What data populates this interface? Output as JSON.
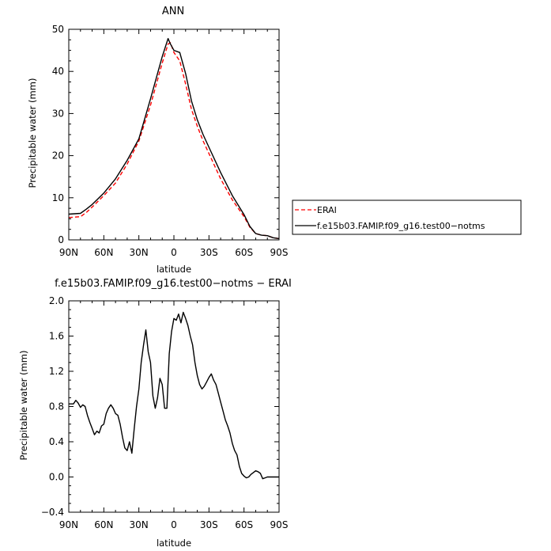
{
  "chart_data": [
    {
      "type": "line",
      "title": "ANN",
      "xlabel": "latitude",
      "ylabel": "Precipitable water (mm)",
      "x_direction": "north-to-south",
      "xlim": [
        90,
        -90
      ],
      "ylim": [
        0,
        50
      ],
      "xticks": [
        {
          "value": 90,
          "label": "90N"
        },
        {
          "value": 60,
          "label": "60N"
        },
        {
          "value": 30,
          "label": "30N"
        },
        {
          "value": 0,
          "label": "0"
        },
        {
          "value": -30,
          "label": "30S"
        },
        {
          "value": -60,
          "label": "60S"
        },
        {
          "value": -90,
          "label": "90S"
        }
      ],
      "yticks": [
        {
          "value": 0,
          "label": "0"
        },
        {
          "value": 10,
          "label": "10"
        },
        {
          "value": 20,
          "label": "20"
        },
        {
          "value": 30,
          "label": "30"
        },
        {
          "value": 40,
          "label": "40"
        },
        {
          "value": 50,
          "label": "50"
        }
      ],
      "grid": false,
      "legend": "outside-right",
      "series": [
        {
          "name": "ERAI",
          "color": "#ff0000",
          "dashed": true,
          "x": [
            90,
            80,
            75,
            70,
            60,
            50,
            40,
            30,
            20,
            15,
            10,
            5,
            3,
            0,
            -5,
            -10,
            -15,
            -20,
            -25,
            -30,
            -40,
            -50,
            -60,
            -65,
            -70,
            -75,
            -80,
            -85,
            -90
          ],
          "y": [
            5.3,
            5.5,
            6.5,
            7.8,
            10.5,
            13.5,
            18,
            23.5,
            32,
            37,
            42,
            46.5,
            46.8,
            44.5,
            42.5,
            37,
            31,
            27,
            23.5,
            20.5,
            14.5,
            9.5,
            5.5,
            3,
            1.5,
            1.1,
            1.0,
            0.5,
            0.3
          ]
        },
        {
          "name": "f.e15b03.FAMIP.f09_g16.test00−notms",
          "color": "#000000",
          "dashed": false,
          "x": [
            90,
            80,
            75,
            70,
            60,
            50,
            40,
            30,
            20,
            15,
            10,
            5,
            3,
            0,
            -5,
            -10,
            -15,
            -20,
            -25,
            -30,
            -40,
            -50,
            -60,
            -65,
            -70,
            -75,
            -80,
            -85,
            -90
          ],
          "y": [
            6.1,
            6.3,
            7.3,
            8.4,
            11.1,
            14.5,
            18.9,
            24,
            33.5,
            38.5,
            43.5,
            47.8,
            46.5,
            45,
            44.5,
            39.5,
            33,
            28.5,
            25,
            22,
            16,
            10.5,
            6,
            3.2,
            1.5,
            1.1,
            1.0,
            0.5,
            0.3
          ]
        }
      ]
    },
    {
      "type": "line",
      "title": "f.e15b03.FAMIP.f09_g16.test00−notms − ERAI",
      "xlabel": "latitude",
      "ylabel": "Precipitable water (mm)",
      "x_direction": "north-to-south",
      "xlim": [
        90,
        -90
      ],
      "ylim": [
        -0.4,
        2.0
      ],
      "xticks": [
        {
          "value": 90,
          "label": "90N"
        },
        {
          "value": 60,
          "label": "60N"
        },
        {
          "value": 30,
          "label": "30N"
        },
        {
          "value": 0,
          "label": "0"
        },
        {
          "value": -30,
          "label": "30S"
        },
        {
          "value": -60,
          "label": "60S"
        },
        {
          "value": -90,
          "label": "90S"
        }
      ],
      "yticks": [
        {
          "value": -0.4,
          "label": "−0.4"
        },
        {
          "value": 0.0,
          "label": "0.0"
        },
        {
          "value": 0.4,
          "label": "0.4"
        },
        {
          "value": 0.8,
          "label": "0.8"
        },
        {
          "value": 1.2,
          "label": "1.2"
        },
        {
          "value": 1.6,
          "label": "1.6"
        },
        {
          "value": 2.0,
          "label": "2.0"
        }
      ],
      "grid": false,
      "series": [
        {
          "color": "#000000",
          "dashed": false,
          "x": [
            90,
            86,
            84,
            82,
            80,
            78,
            76,
            74,
            72,
            70,
            68,
            66,
            64,
            62,
            60,
            58,
            56,
            54,
            52,
            50,
            48,
            46,
            44,
            42,
            40,
            38,
            36,
            34,
            32,
            30,
            28,
            26,
            24,
            22,
            20,
            18,
            16,
            14,
            12,
            10,
            8,
            6,
            4,
            2,
            0,
            -2,
            -4,
            -6,
            -8,
            -10,
            -12,
            -14,
            -16,
            -18,
            -20,
            -22,
            -24,
            -26,
            -28,
            -30,
            -32,
            -34,
            -36,
            -38,
            -40,
            -42,
            -44,
            -46,
            -48,
            -50,
            -52,
            -54,
            -56,
            -58,
            -60,
            -62,
            -64,
            -66,
            -68,
            -70,
            -72,
            -74,
            -76,
            -78,
            -80,
            -82,
            -84,
            -86,
            -88,
            -90
          ],
          "y": [
            0.83,
            0.83,
            0.87,
            0.84,
            0.79,
            0.82,
            0.8,
            0.7,
            0.62,
            0.55,
            0.48,
            0.52,
            0.5,
            0.58,
            0.6,
            0.72,
            0.78,
            0.82,
            0.78,
            0.72,
            0.7,
            0.6,
            0.45,
            0.33,
            0.3,
            0.4,
            0.27,
            0.55,
            0.8,
            1.0,
            1.3,
            1.5,
            1.67,
            1.42,
            1.3,
            0.92,
            0.78,
            0.9,
            1.12,
            1.05,
            0.78,
            0.78,
            1.4,
            1.65,
            1.8,
            1.78,
            1.85,
            1.75,
            1.87,
            1.8,
            1.72,
            1.6,
            1.5,
            1.3,
            1.15,
            1.05,
            1.0,
            1.03,
            1.08,
            1.13,
            1.17,
            1.1,
            1.05,
            0.95,
            0.85,
            0.75,
            0.65,
            0.58,
            0.5,
            0.38,
            0.3,
            0.25,
            0.12,
            0.04,
            0.01,
            -0.01,
            0.0,
            0.03,
            0.05,
            0.07,
            0.06,
            0.04,
            -0.02,
            -0.01,
            0.0,
            0.0,
            0.0,
            0.0,
            0.0,
            0.0
          ]
        }
      ]
    }
  ]
}
